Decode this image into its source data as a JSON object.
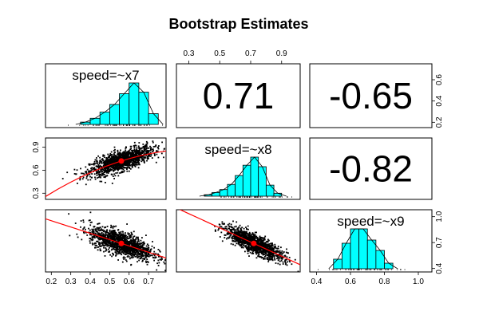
{
  "chart_data": {
    "type": "scatter-matrix",
    "title": "Bootstrap Estimates",
    "variables": [
      "speed=~x7",
      "speed=~x8",
      "speed=~x9"
    ],
    "correlations": {
      "x7_x8": "0.71",
      "x7_x9": "-0.65",
      "x8_x9": "-0.82"
    },
    "axes": {
      "x7": {
        "range": [
          0.17,
          0.79
        ],
        "ticks": [
          "0.2",
          "0.3",
          "0.4",
          "0.5",
          "0.6",
          "0.7"
        ],
        "tick_values": [
          0.2,
          0.3,
          0.4,
          0.5,
          0.6,
          0.7
        ]
      },
      "x8": {
        "range": [
          0.22,
          1.02
        ],
        "ticks": [
          "0.3",
          "0.5",
          "0.7",
          "0.9"
        ],
        "tick_values": [
          0.3,
          0.5,
          0.7,
          0.9
        ]
      },
      "x9": {
        "range": [
          0.36,
          1.08
        ],
        "ticks": [
          "0.4",
          "0.6",
          "0.8",
          "1.0"
        ],
        "tick_values": [
          0.4,
          0.6,
          0.8,
          1.0
        ]
      }
    },
    "left_axis_ticks": {
      "row2": {
        "labels": [
          "0.3",
          "0.6",
          "0.9"
        ],
        "values": [
          0.3,
          0.6,
          0.9
        ]
      }
    },
    "right_axis_ticks": {
      "row1": {
        "labels": [
          "0.2",
          "0.4",
          "0.6"
        ],
        "values": [
          0.2,
          0.4,
          0.6
        ],
        "range": [
          0.15,
          0.75
        ]
      },
      "row3": {
        "labels": [
          "0.4",
          "0.7",
          "1.0"
        ],
        "values": [
          0.4,
          0.7,
          1.0
        ]
      }
    },
    "histograms": {
      "x7": {
        "bin_edges": [
          0.35,
          0.4,
          0.45,
          0.5,
          0.55,
          0.6,
          0.65,
          0.7,
          0.75
        ],
        "counts": [
          3,
          8,
          16,
          26,
          40,
          54,
          42,
          14
        ]
      },
      "x8": {
        "bin_edges": [
          0.4,
          0.45,
          0.5,
          0.55,
          0.6,
          0.65,
          0.7,
          0.75,
          0.8,
          0.85,
          0.9
        ],
        "counts": [
          2,
          5,
          9,
          16,
          28,
          42,
          53,
          40,
          15,
          4
        ]
      },
      "x9": {
        "bin_edges": [
          0.5,
          0.55,
          0.6,
          0.65,
          0.7,
          0.75,
          0.8,
          0.85
        ],
        "counts": [
          12,
          32,
          50,
          50,
          36,
          23,
          7
        ]
      }
    },
    "means": {
      "x7": 0.56,
      "x8": 0.72,
      "x9": 0.69
    },
    "point_cloud_sd": {
      "x7": 0.08,
      "x8": 0.09,
      "x9": 0.09
    },
    "colors": {
      "histogram_fill": "#00ffff",
      "fit_line": "#ff0000",
      "points": "#000000",
      "mean_point": "#ff0000"
    }
  }
}
